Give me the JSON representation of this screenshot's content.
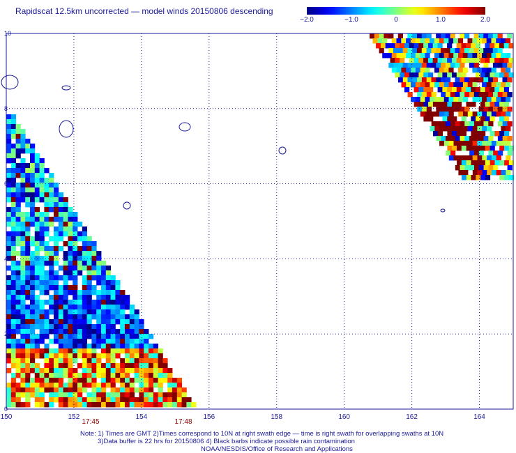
{
  "title": "Rapidscat 12.5km uncorrected — model winds 20150806 descending",
  "colorbar": {
    "labels": [
      "−2.0",
      "−1.0",
      "0",
      "1.0",
      "2.0"
    ],
    "min": -2.0,
    "max": 2.0
  },
  "chart_data": {
    "type": "heatmap",
    "title": "Rapidscat 12.5km uncorrected — model winds 20150806 descending",
    "xlabel": "",
    "ylabel": "",
    "xlim": [
      150,
      165
    ],
    "ylim": [
      0,
      10
    ],
    "x_ticks": [
      "150",
      "152",
      "154",
      "156",
      "158",
      "160",
      "162",
      "164"
    ],
    "y_ticks": [
      "0",
      "2",
      "4",
      "6",
      "8",
      "10"
    ],
    "grid": true,
    "time_labels": [
      "17:45",
      "17:48"
    ],
    "value_range": [
      -2.0,
      2.0
    ]
  },
  "notes": {
    "line1": "Note: 1) Times are GMT 2)Times correspond to 10N at right swath edge — time is right swath for overlapping swaths at 10N",
    "line2": "3)Data buffer is 22 hrs for 20150806 4) Black barbs indicate possible rain contamination",
    "line3": "NOAA/NESDIS/Office of Research and Applications"
  }
}
